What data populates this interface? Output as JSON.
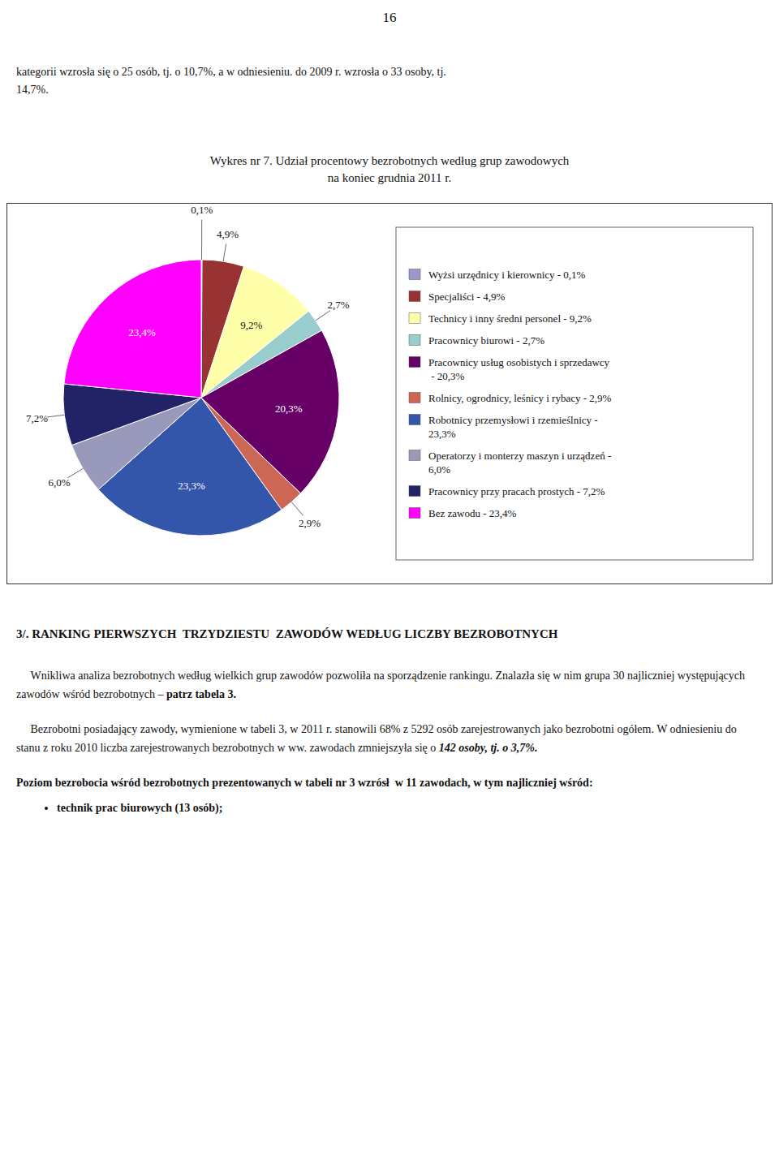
{
  "chart_data": {
    "type": "pie",
    "title": "Wykres nr 7. Udział procentowy bezrobotnych według grup zawodowych",
    "subtitle": "na koniec grudnia 2011 r.",
    "categories": [
      "Wyżsi urzędnicy i kierownicy - 0,1%",
      "Specjaliści - 4,9%",
      "Technicy i inny średni personel - 9,2%",
      "Pracownicy biurowi - 2,7%",
      "Pracownicy usług osobistych i sprzedawcy\n - 20,3%",
      "Rolnicy, ogrodnicy, leśnicy i rybacy - 2,9%",
      "Robotnicy przemysłowi i rzemieślnicy -\n23,3%",
      "Operatorzy i monterzy maszyn i urządzeń -\n6,0%",
      "Pracownicy przy pracach prostych - 7,2%",
      "Bez zawodu - 23,4%"
    ],
    "values": [
      0.1,
      4.9,
      9.2,
      2.7,
      20.3,
      2.9,
      23.3,
      6.0,
      7.2,
      23.4
    ],
    "value_labels": [
      "0,1%",
      "4,9%",
      "9,2%",
      "2,7%",
      "20,3%",
      "2,9%",
      "23,3%",
      "6,0%",
      "7,2%",
      "23,4%"
    ],
    "colors": [
      "#9999CC",
      "#993333",
      "#FFFFAA",
      "#99CCCC",
      "#660066",
      "#CC6655",
      "#3355AA",
      "#9999BB",
      "#222266",
      "#FF00FF"
    ],
    "data_labels": true,
    "legend": "right"
  },
  "page_text": {
    "page_number": "16",
    "top_line1": "kategorii wzrosła się o 25 osób, tj. o 10,7%, a w odniesieniu. do 2009 r. wzrosła o 33 osoby, tj.",
    "top_line2": "14,7%.",
    "heading": "3/. RANKING PIERWSZYCH  TRZYDZIESTU  ZAWODÓW WEDŁUG LICZBY BEZROBOTNYCH",
    "para1_normal": "     Wnikliwa analiza bezrobotnych według wielkich grup zawodów pozwoliła na sporządzenie rankingu. Znalazła się w nim grupa 30 najliczniej występujących zawodów wśród bezrobotnych – ",
    "para1_bold": "patrz tabela 3.",
    "para2_normal": "     Bezrobotni posiadający zawody, wymienione w tabeli 3, w 2011 r. stanowili 68% z 5292 osób zarejestrowanych jako bezrobotni ogółem. W odniesieniu do stanu z roku 2010 liczba zarejestrowanych bezrobotnych w ww. zawodach zmniejszyła się o ",
    "para2_bold_italic": "142 osoby, tj. o 3,7%.",
    "para3_bold": "Poziom bezrobocia wśród bezrobotnych prezentowanych w tabeli nr 3 wzrósł  w 11 zawodach, w tym najliczniej wśród:",
    "bullet1": "technik prac biurowych (13 osób);"
  }
}
